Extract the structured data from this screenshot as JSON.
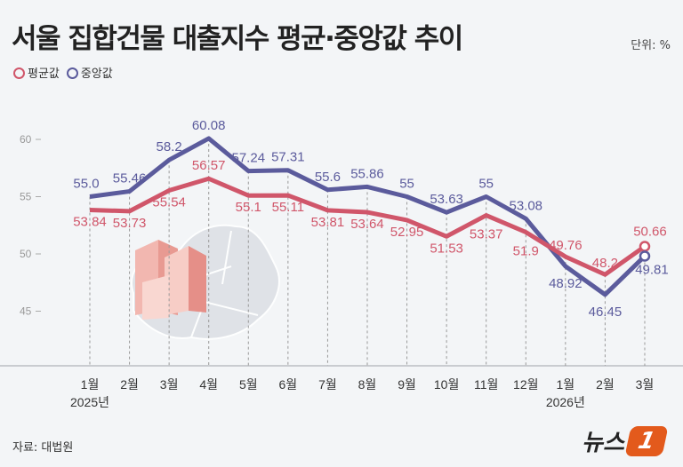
{
  "title": "서울 집합건물 대출지수 평균·중앙값 추이",
  "unit": "단위: %",
  "source": "자료: 대법원",
  "logo": {
    "text": "뉴스",
    "mark": "1"
  },
  "colors": {
    "mean": "#d0566a",
    "median": "#5b5b9c",
    "background": "#f3f5f7"
  },
  "chart_data": {
    "type": "line",
    "title": "서울 집합건물 대출지수 평균·중앙값 추이",
    "categories": [
      "1월",
      "2월",
      "3월",
      "4월",
      "5월",
      "6월",
      "7월",
      "8월",
      "9월",
      "10월",
      "11월",
      "12월",
      "1월",
      "2월",
      "3월"
    ],
    "year_labels": [
      {
        "index": 0,
        "label": "2025년"
      },
      {
        "index": 12,
        "label": "2026년"
      }
    ],
    "yticks": [
      45,
      50,
      55,
      60
    ],
    "ylim": [
      40.2,
      63
    ],
    "legend_placement": "top-left",
    "grid": false,
    "series": [
      {
        "name": "평균값",
        "color": "#d0566a",
        "values": [
          53.84,
          53.73,
          55.54,
          56.57,
          55.1,
          55.11,
          53.81,
          53.64,
          52.95,
          51.53,
          53.37,
          51.9,
          49.76,
          48.2,
          50.66
        ],
        "labels": [
          "53.84",
          "53.73",
          "55.54",
          "56.57",
          "55.1",
          "55.11",
          "53.81",
          "53.64",
          "52.95",
          "51.53",
          "53.37",
          "51.9",
          "49.76",
          "48.2",
          "50.66"
        ]
      },
      {
        "name": "중앙값",
        "color": "#5b5b9c",
        "values": [
          55.0,
          55.46,
          58.2,
          60.08,
          57.24,
          57.31,
          55.6,
          55.86,
          55,
          53.63,
          55,
          53.08,
          48.92,
          46.45,
          49.81
        ],
        "labels": [
          "55.0",
          "55.46",
          "58.2",
          "60.08",
          "57.24",
          "57.31",
          "55.6",
          "55.86",
          "55",
          "53.63",
          "55",
          "53.08",
          "48.92",
          "46.45",
          "49.81"
        ]
      }
    ]
  }
}
